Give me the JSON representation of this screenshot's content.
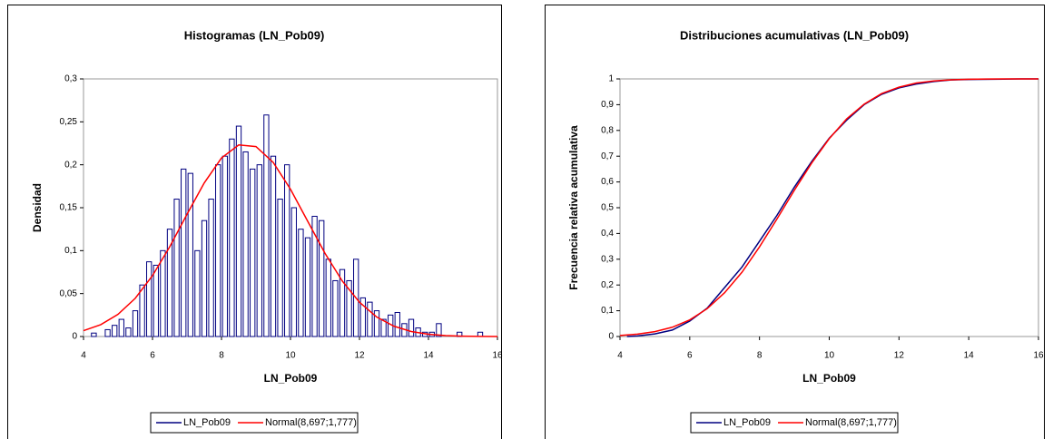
{
  "chart_data": [
    {
      "type": "histogram",
      "title": "Histogramas (LN_Pob09)",
      "x_label": "LN_Pob09",
      "y_label": "Densidad",
      "xlim": [
        4,
        16
      ],
      "xticks": [
        4,
        6,
        8,
        10,
        12,
        14,
        16
      ],
      "ylim": [
        0,
        0.3
      ],
      "yticks": [
        0,
        {
          "value": 0.05,
          "label": "0,05"
        },
        {
          "value": 0.1,
          "label": "0,1"
        },
        {
          "value": 0.15,
          "label": "0,15"
        },
        {
          "value": 0.2,
          "label": "0,2"
        },
        {
          "value": 0.25,
          "label": "0,25"
        },
        {
          "value": 0.3,
          "label": "0,3"
        }
      ],
      "bins": [
        4.0,
        4.2,
        4.4,
        4.6,
        4.8,
        5.0,
        5.2,
        5.4,
        5.6,
        5.8,
        6.0,
        6.2,
        6.4,
        6.6,
        6.8,
        7.0,
        7.2,
        7.4,
        7.6,
        7.8,
        8.0,
        8.2,
        8.4,
        8.6,
        8.8,
        9.0,
        9.2,
        9.4,
        9.6,
        9.8,
        10.0,
        10.2,
        10.4,
        10.6,
        10.8,
        11.0,
        11.2,
        11.4,
        11.6,
        11.8,
        12.0,
        12.2,
        12.4,
        12.6,
        12.8,
        13.0,
        13.2,
        13.4,
        13.6,
        13.8,
        14.0,
        14.2,
        14.4,
        14.6,
        14.8,
        15.0,
        15.2,
        15.4,
        15.6
      ],
      "series": [
        {
          "name": "LN_Pob09",
          "color": "#000080",
          "values": [
            0,
            0.004,
            0,
            0.008,
            0.013,
            0.02,
            0.01,
            0.03,
            0.06,
            0.087,
            0.083,
            0.1,
            0.125,
            0.16,
            0.195,
            0.19,
            0.1,
            0.135,
            0.16,
            0.2,
            0.21,
            0.23,
            0.245,
            0.215,
            0.195,
            0.2,
            0.258,
            0.21,
            0.16,
            0.2,
            0.15,
            0.125,
            0.115,
            0.14,
            0.135,
            0.09,
            0.065,
            0.078,
            0.065,
            0.09,
            0.045,
            0.04,
            0.03,
            0.02,
            0.025,
            0.028,
            0.015,
            0.02,
            0.01,
            0.005,
            0.005,
            0.015,
            0,
            0,
            0.005,
            0,
            0,
            0.005
          ]
        },
        {
          "name": "Normal(8,697;1,777)",
          "color": "#ff0000",
          "x": [
            4,
            4.5,
            5,
            5.5,
            6,
            6.5,
            7,
            7.5,
            8,
            8.5,
            9,
            9.5,
            10,
            10.5,
            11,
            11.5,
            12,
            12.5,
            13,
            13.5,
            14,
            14.5,
            15,
            15.5,
            16
          ],
          "values": [
            0.0068,
            0.0138,
            0.0258,
            0.0445,
            0.0709,
            0.1046,
            0.1423,
            0.1789,
            0.2079,
            0.2231,
            0.2212,
            0.2027,
            0.1715,
            0.1342,
            0.0969,
            0.0647,
            0.0399,
            0.0227,
            0.012,
            0.0058,
            0.0026,
            0.0011,
            0.0004,
            0.0001,
            0
          ]
        }
      ]
    },
    {
      "type": "line",
      "title": "Distribuciones acumulativas (LN_Pob09)",
      "x_label": "LN_Pob09",
      "y_label": "Frecuencia relativa acumulativa",
      "xlim": [
        4,
        16
      ],
      "xticks": [
        4,
        6,
        8,
        10,
        12,
        14,
        16
      ],
      "ylim": [
        0,
        1
      ],
      "yticks": [
        0,
        {
          "value": 0.1,
          "label": "0,1"
        },
        {
          "value": 0.2,
          "label": "0,2"
        },
        {
          "value": 0.3,
          "label": "0,3"
        },
        {
          "value": 0.4,
          "label": "0,4"
        },
        {
          "value": 0.5,
          "label": "0,5"
        },
        {
          "value": 0.6,
          "label": "0,6"
        },
        {
          "value": 0.7,
          "label": "0,7"
        },
        {
          "value": 0.8,
          "label": "0,8"
        },
        {
          "value": 0.9,
          "label": "0,9"
        },
        1
      ],
      "series": [
        {
          "name": "LN_Pob09",
          "color": "#000080",
          "x": [
            4.2,
            4.5,
            5,
            5.5,
            6,
            6.5,
            7,
            7.5,
            8,
            8.5,
            9,
            9.5,
            10,
            10.5,
            11,
            11.5,
            12,
            12.5,
            13,
            13.5,
            14,
            15,
            15.5,
            16
          ],
          "values": [
            0,
            0.002,
            0.01,
            0.025,
            0.06,
            0.11,
            0.19,
            0.27,
            0.37,
            0.47,
            0.58,
            0.68,
            0.77,
            0.84,
            0.9,
            0.94,
            0.965,
            0.98,
            0.99,
            0.996,
            0.998,
            0.999,
            1,
            1
          ]
        },
        {
          "name": "Normal(8,697;1,777)",
          "color": "#ff0000",
          "x": [
            4,
            4.5,
            5,
            5.5,
            6,
            6.5,
            7,
            7.5,
            8,
            8.5,
            9,
            9.5,
            10,
            10.5,
            11,
            11.5,
            12,
            12.5,
            13,
            13.5,
            14,
            14.5,
            15,
            15.5,
            16
          ],
          "values": [
            0.0041,
            0.0091,
            0.0188,
            0.036,
            0.0645,
            0.108,
            0.17,
            0.25,
            0.348,
            0.456,
            0.568,
            0.674,
            0.768,
            0.845,
            0.902,
            0.943,
            0.968,
            0.984,
            0.992,
            0.9966,
            0.9986,
            0.9994,
            0.9998,
            0.9999,
            1
          ]
        }
      ]
    }
  ]
}
